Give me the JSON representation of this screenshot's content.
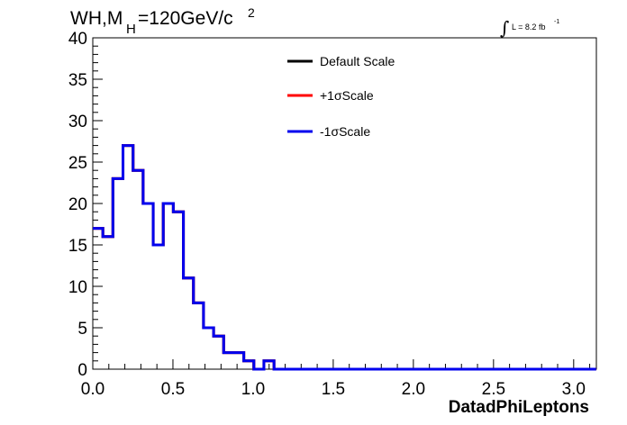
{
  "chart_data": {
    "type": "line",
    "style": "step-histogram",
    "title": {
      "main": "WH,M",
      "sub": "H",
      "rest": "=120GeV/c",
      "sup": "2"
    },
    "lumi": {
      "integral": "∫",
      "text": "L = 8.2 fb",
      "sup": "-1"
    },
    "xlabel": "DatadPhiLeptons",
    "ylabel": "",
    "xlim": [
      0,
      3.1416
    ],
    "ylim": [
      0,
      40
    ],
    "xticks": [
      "0.0",
      "0.5",
      "1.0",
      "1.5",
      "2.0",
      "2.5",
      "3.0"
    ],
    "yticks": [
      "0",
      "5",
      "10",
      "15",
      "20",
      "25",
      "30",
      "35",
      "40"
    ],
    "bin_width": 0.0628,
    "series": [
      {
        "name": "Default Scale",
        "color": "#000000",
        "values": [
          17,
          16,
          23,
          27,
          24,
          20,
          15,
          20,
          19,
          11,
          8,
          5,
          4,
          2,
          2,
          1,
          0,
          1,
          0,
          0,
          0,
          0,
          0,
          0,
          0,
          0,
          0,
          0,
          0,
          0,
          0,
          0,
          0,
          0,
          0,
          0,
          0,
          0,
          0,
          0,
          0,
          0,
          0,
          0,
          0,
          0,
          0,
          0,
          0,
          0
        ]
      },
      {
        "name": "+1σScale",
        "color": "#ff0000",
        "values": [
          17,
          16,
          23,
          27,
          24,
          20,
          15,
          20,
          19,
          11,
          8,
          5,
          4,
          2,
          2,
          1,
          0,
          1,
          0,
          0,
          0,
          0,
          0,
          0,
          0,
          0,
          0,
          0,
          0,
          0,
          0,
          0,
          0,
          0,
          0,
          0,
          0,
          0,
          0,
          0,
          0,
          0,
          0,
          0,
          0,
          0,
          0,
          0,
          0,
          0
        ]
      },
      {
        "name": "-1σScale",
        "color": "#0000ee",
        "values": [
          17,
          16,
          23,
          27,
          24,
          20,
          15,
          20,
          19,
          11,
          8,
          5,
          4,
          2,
          2,
          1,
          0,
          1,
          0,
          0,
          0,
          0,
          0,
          0,
          0,
          0,
          0,
          0,
          0,
          0,
          0,
          0,
          0,
          0,
          0,
          0,
          0,
          0,
          0,
          0,
          0,
          0,
          0,
          0,
          0,
          0,
          0,
          0,
          0,
          0
        ]
      }
    ],
    "legend_position": "top-center",
    "grid": false
  }
}
